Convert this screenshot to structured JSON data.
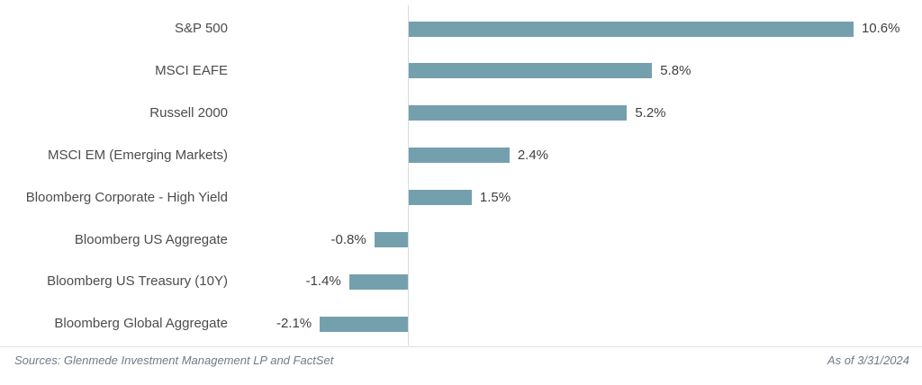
{
  "chart_data": {
    "type": "bar",
    "orientation": "horizontal",
    "title": "",
    "xlabel": "",
    "ylabel": "",
    "categories": [
      "S&P 500",
      "MSCI EAFE",
      "Russell 2000",
      "MSCI EM (Emerging Markets)",
      "Bloomberg Corporate - High Yield",
      "Bloomberg US Aggregate",
      "Bloomberg US Treasury (10Y)",
      "Bloomberg Global Aggregate"
    ],
    "values": [
      10.6,
      5.8,
      5.2,
      2.4,
      1.5,
      -0.8,
      -1.4,
      -2.1
    ],
    "value_labels": [
      "10.6%",
      "5.8%",
      "5.2%",
      "2.4%",
      "1.5%",
      "-0.8%",
      "-1.4%",
      "-2.1%"
    ],
    "unit": "%",
    "xlim": [
      -2.5,
      12.3
    ],
    "grid": false,
    "legend": false,
    "bar_color": "#74A0AE"
  },
  "colors": {
    "bar": "#74A0AE",
    "category_text": "#4c4c4c",
    "value_text": "#3f3f3f",
    "axis_line": "#d6dadf",
    "footer_text": "#6e7b87"
  },
  "footer": {
    "sources": "Sources: Glenmede Investment Management LP and FactSet",
    "as_of": "As of 3/31/2024"
  }
}
